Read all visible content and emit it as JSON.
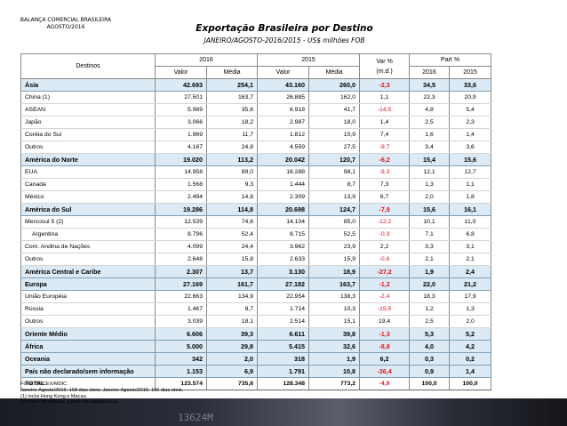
{
  "header": {
    "org_line1": "BALANÇA COMERCIAL BRASILEIRA",
    "org_line2": "AGOSTO/2016",
    "title": "Exportação Brasileira por Destino",
    "subtitle": "JANEIRO/AGOSTO-2016/2015 - US$ milhões FOB"
  },
  "table": {
    "col_destinos": "Destinos",
    "col_2016": "2016",
    "col_2015": "2015",
    "col_var_line1": "Var %",
    "col_var_line2": "(m.d.)",
    "col_part": "Part %",
    "sub_valor": "Valor",
    "sub_media": "Média",
    "sub_part_2016": "2016",
    "sub_part_2015": "2015",
    "rows": [
      {
        "type": "region",
        "name": "Ásia",
        "v16": "42.693",
        "m16": "254,1",
        "v15": "43.160",
        "m15": "260,0",
        "var": "-2,3",
        "p16": "34,5",
        "p15": "33,6",
        "neg": true
      },
      {
        "type": "sub",
        "name": "China (1)",
        "v16": "27.501",
        "m16": "163,7",
        "v15": "26.885",
        "m15": "162,0",
        "var": "1,1",
        "p16": "22,3",
        "p15": "20,9",
        "neg": false
      },
      {
        "type": "sub",
        "name": "ASEAN",
        "v16": "5.989",
        "m16": "35,6",
        "v15": "6.918",
        "m15": "41,7",
        "var": "-14,5",
        "p16": "4,8",
        "p15": "5,4",
        "neg": true
      },
      {
        "type": "sub",
        "name": "Japão",
        "v16": "3.066",
        "m16": "18,2",
        "v15": "2.987",
        "m15": "18,0",
        "var": "1,4",
        "p16": "2,5",
        "p15": "2,3",
        "neg": false
      },
      {
        "type": "sub",
        "name": "Coréia do Sul",
        "v16": "1.969",
        "m16": "11,7",
        "v15": "1.812",
        "m15": "10,9",
        "var": "7,4",
        "p16": "1,6",
        "p15": "1,4",
        "neg": false
      },
      {
        "type": "sub",
        "name": "Outros",
        "v16": "4.167",
        "m16": "24,8",
        "v15": "4.559",
        "m15": "27,5",
        "var": "-9,7",
        "p16": "3,4",
        "p15": "3,6",
        "neg": true
      },
      {
        "type": "region",
        "name": "América do Norte",
        "v16": "19.020",
        "m16": "113,2",
        "v15": "20.042",
        "m15": "120,7",
        "var": "-6,2",
        "p16": "15,4",
        "p15": "15,6",
        "neg": true
      },
      {
        "type": "sub",
        "name": "EUA",
        "v16": "14.958",
        "m16": "89,0",
        "v15": "16.288",
        "m15": "98,1",
        "var": "-9,3",
        "p16": "12,1",
        "p15": "12,7",
        "neg": true
      },
      {
        "type": "sub",
        "name": "Canada",
        "v16": "1.568",
        "m16": "9,3",
        "v15": "1.444",
        "m15": "8,7",
        "var": "7,3",
        "p16": "1,3",
        "p15": "1,1",
        "neg": false
      },
      {
        "type": "sub",
        "name": "México",
        "v16": "2.494",
        "m16": "14,8",
        "v15": "2.309",
        "m15": "13,9",
        "var": "6,7",
        "p16": "2,0",
        "p15": "1,8",
        "neg": false
      },
      {
        "type": "region",
        "name": "América do Sul",
        "v16": "19.286",
        "m16": "114,8",
        "v15": "20.698",
        "m15": "124,7",
        "var": "-7,9",
        "p16": "15,6",
        "p15": "16,1",
        "neg": true
      },
      {
        "type": "sub",
        "name": "Mercosul 5 (2)",
        "v16": "12.539",
        "m16": "74,6",
        "v15": "14.104",
        "m15": "85,0",
        "var": "-12,2",
        "p16": "10,1",
        "p15": "11,0",
        "neg": true
      },
      {
        "type": "sub2",
        "name": "Argentina",
        "v16": "8.796",
        "m16": "52,4",
        "v15": "8.715",
        "m15": "52,5",
        "var": "-0,3",
        "p16": "7,1",
        "p15": "6,8",
        "neg": true
      },
      {
        "type": "sub",
        "name": "Com. Andina de Nações",
        "v16": "4.099",
        "m16": "24,4",
        "v15": "3.962",
        "m15": "23,9",
        "var": "2,2",
        "p16": "3,3",
        "p15": "3,1",
        "neg": false
      },
      {
        "type": "sub",
        "name": "Outros",
        "v16": "2.648",
        "m16": "15,8",
        "v15": "2.633",
        "m15": "15,9",
        "var": "-0,6",
        "p16": "2,1",
        "p15": "2,1",
        "neg": true
      },
      {
        "type": "region",
        "name": "América Central e Caribe",
        "v16": "2.307",
        "m16": "13,7",
        "v15": "3.130",
        "m15": "18,9",
        "var": "-27,2",
        "p16": "1,9",
        "p15": "2,4",
        "neg": true
      },
      {
        "type": "region",
        "name": "Europa",
        "v16": "27.169",
        "m16": "161,7",
        "v15": "27.182",
        "m15": "163,7",
        "var": "-1,2",
        "p16": "22,0",
        "p15": "21,2",
        "neg": true
      },
      {
        "type": "sub",
        "name": "União Européia",
        "v16": "22.663",
        "m16": "134,9",
        "v15": "22.954",
        "m15": "138,3",
        "var": "-2,4",
        "p16": "18,3",
        "p15": "17,9",
        "neg": true
      },
      {
        "type": "sub",
        "name": "Rússia",
        "v16": "1.467",
        "m16": "8,7",
        "v15": "1.714",
        "m15": "10,3",
        "var": "-15,5",
        "p16": "1,2",
        "p15": "1,3",
        "neg": true
      },
      {
        "type": "sub",
        "name": "Outros",
        "v16": "3.039",
        "m16": "18,1",
        "v15": "2.514",
        "m15": "15,1",
        "var": "19,4",
        "p16": "2,5",
        "p15": "2,0",
        "neg": false
      },
      {
        "type": "region",
        "name": "Oriente Médio",
        "v16": "6.606",
        "m16": "39,3",
        "v15": "6.611",
        "m15": "39,8",
        "var": "-1,3",
        "p16": "5,3",
        "p15": "5,2",
        "neg": true
      },
      {
        "type": "region",
        "name": "África",
        "v16": "5.000",
        "m16": "29,8",
        "v15": "5.415",
        "m15": "32,6",
        "var": "-8,8",
        "p16": "4,0",
        "p15": "4,2",
        "neg": true
      },
      {
        "type": "region",
        "name": "Oceania",
        "v16": "342",
        "m16": "2,0",
        "v15": "318",
        "m15": "1,9",
        "var": "6,2",
        "p16": "0,3",
        "p15": "0,2",
        "neg": false
      },
      {
        "type": "region",
        "name": "País não declarado/sem informação",
        "v16": "1.153",
        "m16": "6,9",
        "v15": "1.791",
        "m15": "10,8",
        "var": "-36,4",
        "p16": "0,9",
        "p15": "1,4",
        "neg": true
      },
      {
        "type": "total",
        "name": "TOTAL",
        "v16": "123.574",
        "m16": "735,6",
        "v15": "128.348",
        "m15": "773,2",
        "var": "-4,9",
        "p16": "100,0",
        "p15": "100,0",
        "neg": true
      }
    ]
  },
  "notes": {
    "source": "Fonte: SECEX/MDIC.",
    "days": "Janeiro-Agosto/2016: 168 dias úteis; Janeiro-Agosto/2015: 166 dias úteis.",
    "note1": "(1) inclui Hong Kong e Macau.",
    "note2": "(2) inclui Venezuela, a partir de agosto/2012."
  },
  "background": {
    "ticker_text": "13624M"
  }
}
